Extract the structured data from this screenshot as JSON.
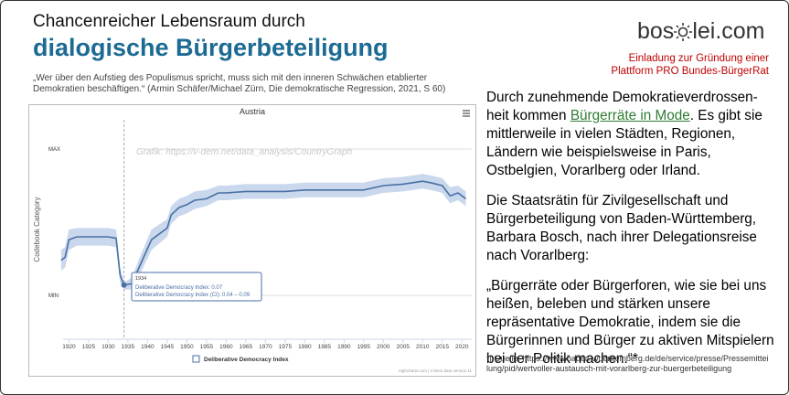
{
  "header": {
    "title_line1": "Chancenreicher Lebensraum durch",
    "title_line2": "dialogische Bürgerbeteiligung",
    "quote": "„Wer über den Aufstieg des Populismus spricht, muss sich mit den inneren Schwächen etablierter Demokratien beschäftigen.“ (Armin Schäfer/Michael Zürn, Die demokratische Regression, 2021, S 60)"
  },
  "logo": {
    "left": "bos",
    "right": "lei.com"
  },
  "invitation": {
    "line1": "Einladung zur Gründung einer",
    "line2": "Plattform PRO Bundes-BürgerRat"
  },
  "body": {
    "para1": {
      "line1": "Durch zunehmende Demokratieverdrossen-",
      "before": "heit kommen ",
      "link": "Bürgerräte in Mode",
      "rest": ". Es gibt sie mittlerweile in vielen Städten, Regionen, Ländern wie beispielsweise in Paris, Ostbelgien, Vorarlberg oder Irland."
    },
    "para2": "Die Staatsrätin für Zivilgesellschaft und Bürgerbeteiligung von Baden-Württemberg, Barbara Bosch, nach ihrer Delegationsreise nach Vorarlberg:",
    "para3": "„Bürgerräte oder Bürgerforen, wie sie bei uns heißen, beleben und stärken unsere repräsentative Demokratie, indem sie die Bürgerinnen und Bürger zu aktiven Mitspielern bei der Politik machen.“*",
    "footnote": "*| Quelle: https://www.baden-wuerttemberg.de/de/service/presse/Pressemitteilung/pid/wertvoller-austausch-mit-vorarlberg-zur-buergerbeteiligung"
  },
  "chart": {
    "type": "line",
    "title": "Austria",
    "ylabel": "Codebook Category",
    "watermark": "Grafik: https://v-dem.net/data_analysis/CountryGraph",
    "credits": "Highcharts.com | V-Dem data version 11",
    "x": [
      1918,
      1919,
      1920,
      1922,
      1925,
      1930,
      1932,
      1933,
      1934,
      1936,
      1938,
      1941,
      1945,
      1946,
      1948,
      1950,
      1952,
      1955,
      1958,
      1960,
      1965,
      1970,
      1975,
      1980,
      1985,
      1990,
      1995,
      2000,
      2005,
      2010,
      2012,
      2015,
      2017,
      2019,
      2021
    ],
    "series": [
      {
        "name": "Deliberative Democracy Index",
        "color": "#4a6fa5",
        "band_color": "#c9d8ec",
        "values": [
          0.24,
          0.26,
          0.38,
          0.4,
          0.4,
          0.4,
          0.39,
          0.14,
          0.07,
          0.08,
          0.2,
          0.38,
          0.46,
          0.55,
          0.6,
          0.62,
          0.65,
          0.66,
          0.7,
          0.7,
          0.71,
          0.71,
          0.71,
          0.72,
          0.72,
          0.72,
          0.72,
          0.75,
          0.76,
          0.78,
          0.77,
          0.75,
          0.68,
          0.7,
          0.66
        ],
        "ci_lower": [
          0.17,
          0.19,
          0.31,
          0.34,
          0.34,
          0.34,
          0.33,
          0.09,
          0.04,
          0.04,
          0.14,
          0.31,
          0.4,
          0.49,
          0.54,
          0.56,
          0.59,
          0.61,
          0.65,
          0.65,
          0.66,
          0.66,
          0.66,
          0.67,
          0.67,
          0.67,
          0.67,
          0.7,
          0.71,
          0.73,
          0.72,
          0.7,
          0.63,
          0.65,
          0.61
        ],
        "ci_upper": [
          0.31,
          0.33,
          0.45,
          0.46,
          0.46,
          0.46,
          0.45,
          0.19,
          0.09,
          0.12,
          0.26,
          0.45,
          0.52,
          0.61,
          0.66,
          0.68,
          0.71,
          0.72,
          0.75,
          0.75,
          0.76,
          0.76,
          0.76,
          0.77,
          0.77,
          0.77,
          0.77,
          0.8,
          0.81,
          0.83,
          0.82,
          0.8,
          0.74,
          0.75,
          0.71
        ]
      }
    ],
    "xlim": [
      1918.5,
      2022.5
    ],
    "xticks": [
      1920,
      1925,
      1930,
      1935,
      1940,
      1945,
      1950,
      1955,
      1960,
      1965,
      1970,
      1975,
      1980,
      1985,
      1990,
      1995,
      2000,
      2005,
      2010,
      2015,
      2020
    ],
    "ylim": [
      -0.3,
      1.2
    ],
    "yticks": [
      {
        "value": 0,
        "label": "MIN"
      },
      {
        "value": 1,
        "label": "MAX"
      }
    ],
    "grid": true,
    "tooltip": {
      "index": 8,
      "year": "1934",
      "line1": "Deliberative Democracy Index: 0.07",
      "line2": "Deliberative Democracy Index (CI): 0.04 – 0.09"
    }
  }
}
